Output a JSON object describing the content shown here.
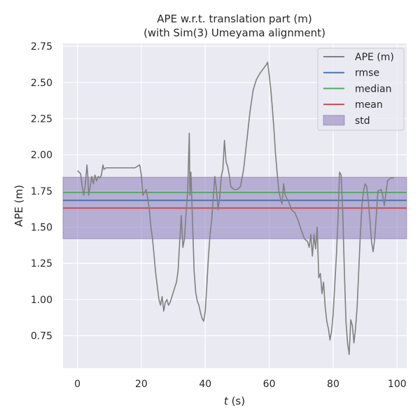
{
  "chart_data": {
    "type": "line",
    "title_line1": "APE w.r.t. translation part (m)",
    "title_line2": "(with Sim(3) Umeyama alignment)",
    "xlabel_var": "t",
    "xlabel_unit": " (s)",
    "ylabel": "APE (m)",
    "xlim": [
      -4.5,
      103
    ],
    "ylim": [
      0.525,
      2.77
    ],
    "xticks": [
      0,
      20,
      40,
      60,
      80,
      100
    ],
    "xtick_labels": [
      "0",
      "20",
      "40",
      "60",
      "80",
      "100"
    ],
    "yticks": [
      0.75,
      1.0,
      1.25,
      1.5,
      1.75,
      2.0,
      2.25,
      2.5,
      2.75
    ],
    "ytick_labels": [
      "0.75",
      "1.00",
      "1.25",
      "1.50",
      "1.75",
      "2.00",
      "2.25",
      "2.50",
      "2.75"
    ],
    "grid": true,
    "legend_position": "top-right",
    "colors": {
      "ape": "#808080",
      "rmse": "#4c72b0",
      "median": "#55a868",
      "mean": "#c44e52",
      "std": "#8172b3",
      "plot_bg": "#eaeaf2",
      "grid": "#ffffff"
    },
    "legend": [
      {
        "key": "ape",
        "label": "APE (m)",
        "kind": "line"
      },
      {
        "key": "rmse",
        "label": "rmse",
        "kind": "line"
      },
      {
        "key": "median",
        "label": "median",
        "kind": "line"
      },
      {
        "key": "mean",
        "label": "mean",
        "kind": "line"
      },
      {
        "key": "std",
        "label": "std",
        "kind": "patch"
      }
    ],
    "stats": {
      "rmse": 1.685,
      "median": 1.74,
      "mean": 1.632,
      "std_band": [
        1.42,
        1.845
      ]
    },
    "series": [
      {
        "name": "APE (m)",
        "x": [
          0,
          1,
          1.5,
          2,
          2.5,
          3,
          3.3,
          3.5,
          4,
          4.5,
          5,
          5.5,
          6,
          6.5,
          7,
          7.5,
          8,
          8.3,
          9,
          10,
          12,
          15,
          18,
          19.5,
          20,
          20.5,
          21,
          21.5,
          22,
          22.5,
          23,
          23.5,
          24,
          24.5,
          25,
          25.5,
          26,
          26.5,
          27,
          27.5,
          28,
          28.5,
          29,
          30,
          31,
          31.5,
          32,
          32.5,
          33,
          33.5,
          34,
          34.5,
          35,
          35.2,
          35.5,
          36,
          36.5,
          37,
          37.5,
          38,
          38.5,
          39,
          39.5,
          40,
          40.5,
          41,
          41.5,
          42,
          42.5,
          43,
          43.5,
          44,
          44.5,
          45,
          45.5,
          46,
          46.5,
          47,
          47.5,
          48,
          49,
          50,
          51,
          52,
          53,
          54,
          55,
          56,
          57,
          58,
          59,
          59.5,
          60,
          60.5,
          61,
          61.5,
          62,
          62.5,
          63,
          63.5,
          64,
          64.5,
          65,
          66,
          67,
          68,
          69,
          70,
          71,
          72,
          72.5,
          73,
          73.5,
          74,
          74.5,
          75,
          75.5,
          76,
          76.5,
          77,
          77.5,
          78,
          78.5,
          79,
          79.5,
          80,
          80.5,
          81,
          81.5,
          82,
          82.5,
          83,
          83.5,
          84,
          84.5,
          85,
          85.5,
          86,
          86.5,
          87,
          87.5,
          88,
          88.5,
          89,
          89.5,
          90,
          90.5,
          91,
          91.5,
          92,
          92.5,
          93,
          94,
          95,
          95.5,
          96,
          97,
          98,
          99
        ],
        "values": [
          1.89,
          1.87,
          1.78,
          1.72,
          1.8,
          1.93,
          1.84,
          1.72,
          1.78,
          1.85,
          1.8,
          1.86,
          1.82,
          1.85,
          1.84,
          1.86,
          1.93,
          1.9,
          1.91,
          1.91,
          1.91,
          1.91,
          1.91,
          1.93,
          1.86,
          1.72,
          1.74,
          1.76,
          1.7,
          1.62,
          1.5,
          1.42,
          1.3,
          1.18,
          1.09,
          1.0,
          0.96,
          1.02,
          0.92,
          0.98,
          1.0,
          0.96,
          0.98,
          1.05,
          1.12,
          1.2,
          1.4,
          1.58,
          1.36,
          1.42,
          1.6,
          1.75,
          2.15,
          1.72,
          1.88,
          1.55,
          1.2,
          1.05,
          0.99,
          0.96,
          0.91,
          0.87,
          0.85,
          0.92,
          1.1,
          1.3,
          1.45,
          1.55,
          1.7,
          1.85,
          1.76,
          1.62,
          1.7,
          1.85,
          1.9,
          2.1,
          1.95,
          1.92,
          1.86,
          1.78,
          1.76,
          1.76,
          1.78,
          1.9,
          2.1,
          2.3,
          2.45,
          2.52,
          2.56,
          2.59,
          2.62,
          2.64,
          2.55,
          2.45,
          2.32,
          2.17,
          2.0,
          1.87,
          1.75,
          1.7,
          1.66,
          1.8,
          1.72,
          1.68,
          1.62,
          1.6,
          1.55,
          1.48,
          1.42,
          1.4,
          1.36,
          1.45,
          1.3,
          1.45,
          1.35,
          1.5,
          1.15,
          1.18,
          1.04,
          1.12,
          0.95,
          0.85,
          0.8,
          0.72,
          0.78,
          0.9,
          1.1,
          1.3,
          1.55,
          1.88,
          1.86,
          1.6,
          1.2,
          0.85,
          0.7,
          0.62,
          0.86,
          0.82,
          0.7,
          0.8,
          0.95,
          1.2,
          1.45,
          1.65,
          1.75,
          1.8,
          1.78,
          1.68,
          1.55,
          1.4,
          1.33,
          1.42,
          1.75,
          1.76,
          1.72,
          1.65,
          1.82,
          1.84,
          1.84
        ]
      }
    ]
  }
}
